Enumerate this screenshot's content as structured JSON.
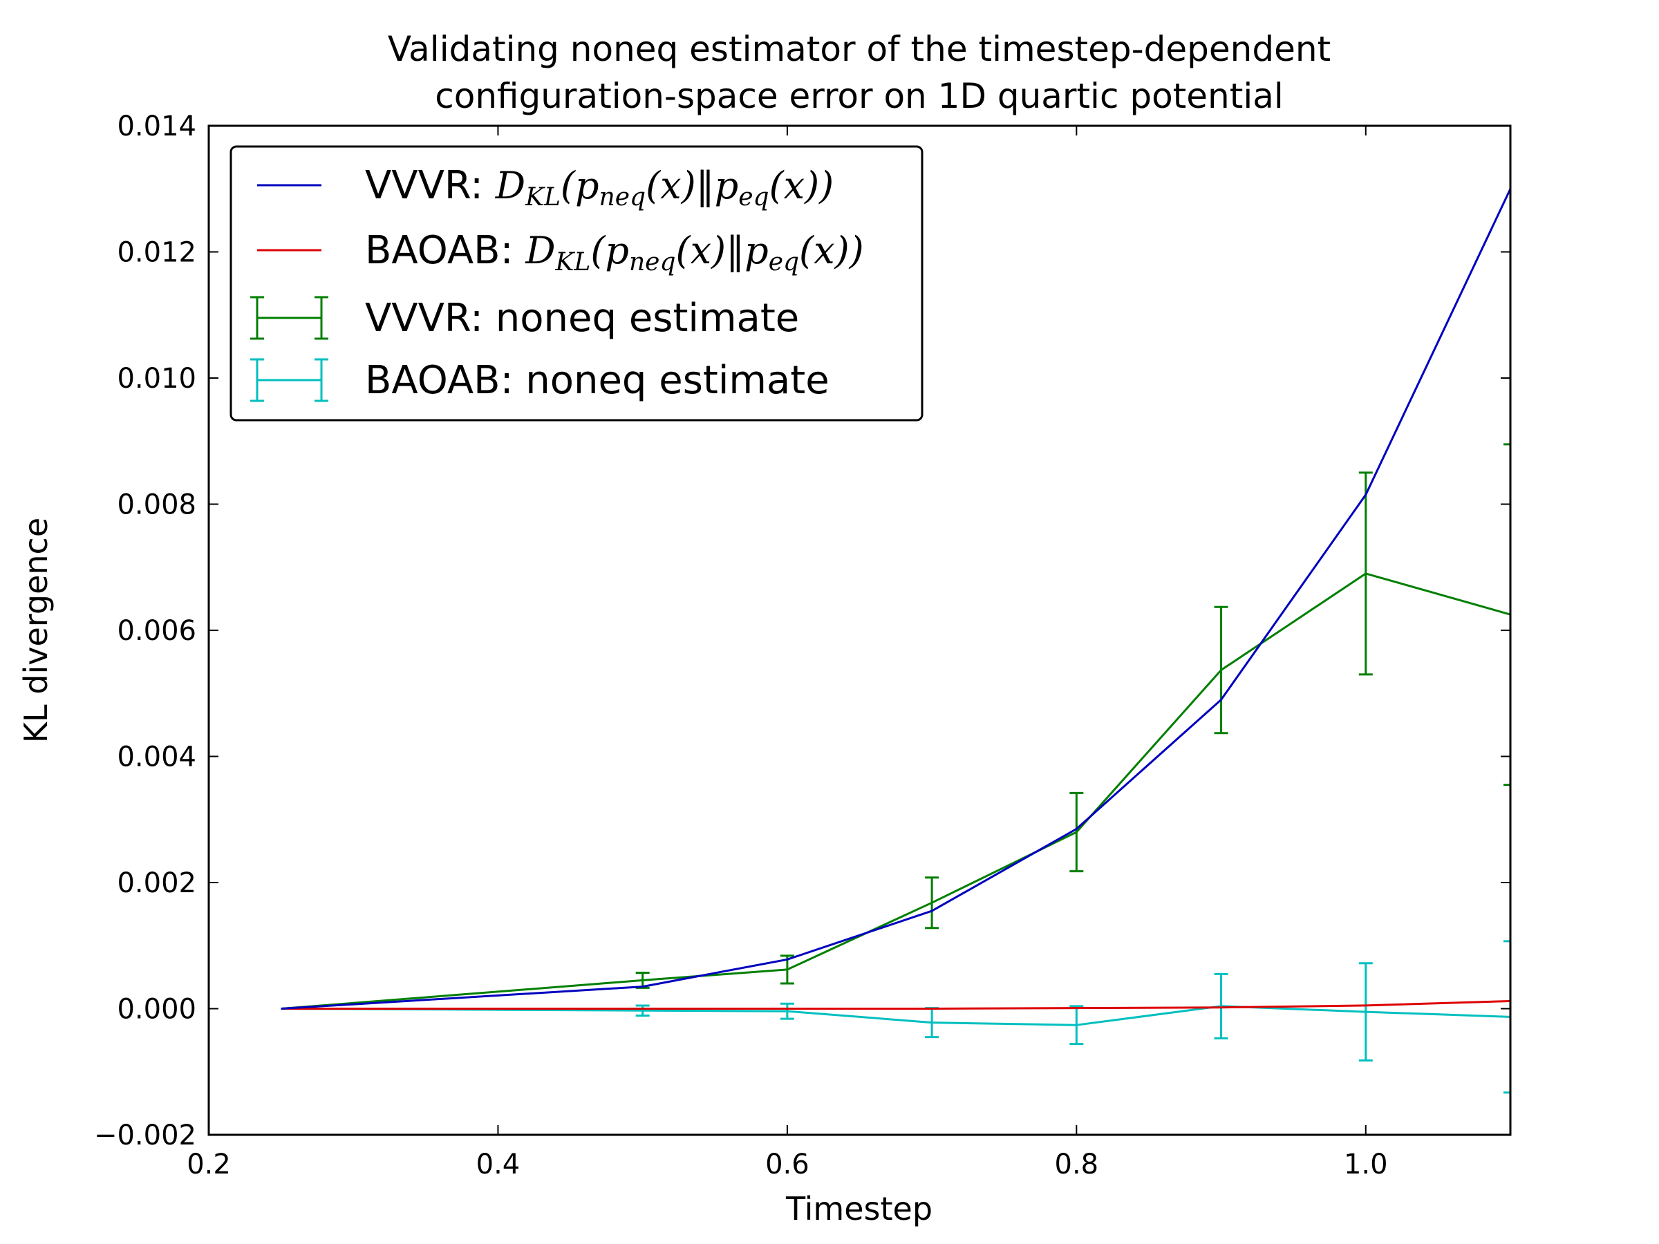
{
  "chart_data": {
    "type": "line",
    "title": [
      "Validating noneq estimator of the timestep-dependent",
      "configuration-space error on 1D quartic potential"
    ],
    "xlabel": "Timestep",
    "ylabel": "KL divergence",
    "xlim": [
      0.2,
      1.1
    ],
    "ylim": [
      -0.002,
      0.014
    ],
    "xticks": [
      0.2,
      0.4,
      0.6,
      0.8,
      1.0
    ],
    "xtick_labels": [
      "0.2",
      "0.4",
      "0.6",
      "0.8",
      "1.0"
    ],
    "yticks": [
      -0.002,
      0.0,
      0.002,
      0.004,
      0.006,
      0.008,
      0.01,
      0.012,
      0.014
    ],
    "ytick_labels": [
      "−0.002",
      "0.000",
      "0.002",
      "0.004",
      "0.006",
      "0.008",
      "0.010",
      "0.012",
      "0.014"
    ],
    "grid": false,
    "legend_position": "top-left",
    "series": [
      {
        "name_prefix": "VVVR: ",
        "name_math": "D_KL(p_neq(x)||p_eq(x))",
        "color": "#0000bf",
        "kind": "line",
        "x": [
          0.25,
          0.5,
          0.6,
          0.7,
          0.8,
          0.9,
          1.0,
          1.1
        ],
        "y": [
          0.0,
          0.00035,
          0.00078,
          0.00155,
          0.00285,
          0.0049,
          0.00815,
          0.013
        ]
      },
      {
        "name_prefix": "BAOAB: ",
        "name_math": "D_KL(p_neq(x)||p_eq(x))",
        "color": "#dd0000",
        "kind": "line",
        "x": [
          0.25,
          0.5,
          0.6,
          0.7,
          0.8,
          0.9,
          1.0,
          1.1
        ],
        "y": [
          0.0,
          0.0,
          0.0,
          0.0,
          1e-05,
          2e-05,
          5e-05,
          0.00012
        ]
      },
      {
        "name": "VVVR: noneq estimate",
        "color": "#007f00",
        "kind": "errorbar",
        "x": [
          0.25,
          0.5,
          0.6,
          0.7,
          0.8,
          0.9,
          1.0,
          1.1
        ],
        "y": [
          0.0,
          0.00045,
          0.00062,
          0.00168,
          0.0028,
          0.00537,
          0.0069,
          0.00625
        ],
        "err": [
          0.0,
          0.00012,
          0.00022,
          0.0004,
          0.00062,
          0.001,
          0.0016,
          0.0027
        ]
      },
      {
        "name": "BAOAB: noneq estimate",
        "color": "#00bfbf",
        "kind": "errorbar",
        "x": [
          0.25,
          0.5,
          0.6,
          0.7,
          0.8,
          0.9,
          1.0,
          1.1
        ],
        "y": [
          0.0,
          -3e-05,
          -4e-05,
          -0.00022,
          -0.00026,
          4e-05,
          -5e-05,
          -0.00013
        ],
        "err": [
          0.0,
          8e-05,
          0.00012,
          0.00023,
          0.0003,
          0.00051,
          0.00077,
          0.0012
        ]
      }
    ]
  }
}
